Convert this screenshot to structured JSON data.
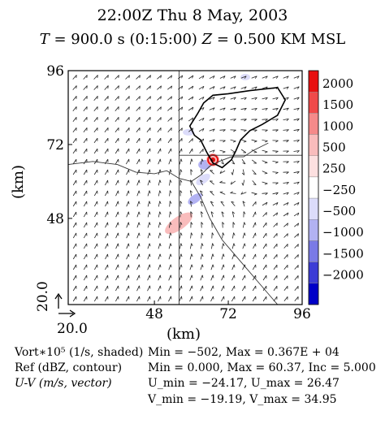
{
  "header": {
    "time_line": "22:00Z    Thu 8 May, 2003",
    "t_label": "T",
    "t_value": " = 900.0 s (0:15:00)   ",
    "z_label": "Z",
    "z_value": " = 0.500 KM MSL"
  },
  "chart_data": {
    "type": "vector",
    "xlabel": "(km)",
    "ylabel": "(km)",
    "xlim": [
      20.0,
      96
    ],
    "ylim": [
      20.0,
      96
    ],
    "x_ticks": [
      "20.0",
      "48",
      "72",
      "96"
    ],
    "y_ticks": [
      "20.0",
      "48",
      "72",
      "96"
    ],
    "colorbar": {
      "labels": [
        "2000",
        "1500",
        "1000",
        "500",
        "250",
        "−250",
        "−500",
        "−1000",
        "−1500",
        "−2000"
      ],
      "colors": [
        "#e81010",
        "#f04a4a",
        "#f58a8a",
        "#f9bcbc",
        "#fde0e0",
        "#ffffff",
        "#dcdcfa",
        "#b2b2f2",
        "#7a7ae6",
        "#3c3cd6",
        "#0000c8"
      ]
    },
    "fields": {
      "vorticity": {
        "name": "Vort∗10⁵ (1/s, shaded)",
        "min": "−502",
        "max": "0.367E + 04"
      },
      "reflectivity": {
        "name": "Ref (dBZ, contour)",
        "min": "0.000",
        "max": "60.37",
        "inc": "5.000"
      },
      "wind": {
        "name": "U-V (m/s, vector)",
        "u_min": "−24.17",
        "u_max": "26.47",
        "v_min": "−19.19",
        "v_max": "34.95"
      }
    },
    "reflectivity_outline": [
      [
        59.5,
        78
      ],
      [
        62,
        82
      ],
      [
        64,
        85.5
      ],
      [
        67,
        88
      ],
      [
        72,
        88.5
      ],
      [
        79,
        89.5
      ],
      [
        88,
        90.5
      ],
      [
        90.5,
        86.5
      ],
      [
        88,
        81.5
      ],
      [
        83,
        78.5
      ],
      [
        79,
        76.5
      ],
      [
        76,
        73.5
      ],
      [
        74.5,
        70
      ],
      [
        73,
        67
      ],
      [
        70,
        64.5
      ],
      [
        67,
        66
      ],
      [
        65,
        69.5
      ],
      [
        63,
        73.5
      ],
      [
        61,
        75
      ],
      [
        59.5,
        78
      ]
    ],
    "vortex_center": [
      67,
      67
    ],
    "boundaries": [
      [
        [
          20,
          65.5
        ],
        [
          28,
          66.5
        ],
        [
          36,
          65.5
        ],
        [
          42,
          63
        ],
        [
          48,
          62.5
        ],
        [
          52,
          63.5
        ],
        [
          56,
          61
        ],
        [
          60,
          60
        ],
        [
          63,
          62
        ],
        [
          66,
          65
        ],
        [
          69,
          66.5
        ],
        [
          73,
          68
        ],
        [
          77,
          68
        ],
        [
          80,
          70
        ],
        [
          85,
          72.5
        ]
      ],
      [
        [
          60,
          60
        ],
        [
          63,
          55
        ],
        [
          66,
          48
        ],
        [
          70,
          41
        ],
        [
          76,
          34
        ],
        [
          82,
          27
        ],
        [
          88,
          20
        ]
      ],
      [
        [
          56,
          68.5
        ],
        [
          96,
          68.5
        ]
      ]
    ],
    "vertical_line_x": 56
  },
  "footer": {
    "vort_label": "Vort∗10⁵ (1/s, shaded)",
    "ref_label": "Ref (dBZ, contour)",
    "uv_label": "U-V (m/s, vector)",
    "min_max_line": "Min = −502, Max = 0.367E + 04",
    "ref_line": "Min = 0.000, Max = 60.37, Inc = 5.000",
    "u_line": "U_min = −24.17, U_max = 26.47",
    "v_line": "V_min = −19.19, V_max = 34.95"
  }
}
